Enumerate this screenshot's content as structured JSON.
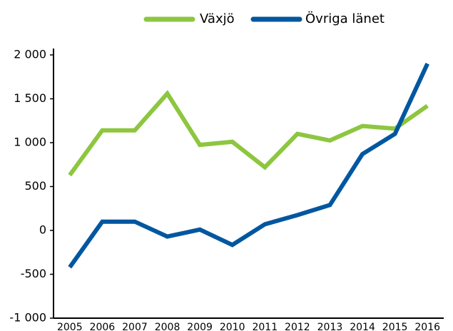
{
  "chart_data": {
    "type": "line",
    "categories": [
      "2005",
      "2006",
      "2007",
      "2008",
      "2009",
      "2010",
      "2011",
      "2012",
      "2013",
      "2014",
      "2015",
      "2016"
    ],
    "series": [
      {
        "name": "Växjö",
        "color": "#8dc63f",
        "values": [
          630,
          1140,
          1140,
          1560,
          975,
          1010,
          720,
          1100,
          1025,
          1190,
          1160,
          1420
        ]
      },
      {
        "name": "Övriga länet",
        "color": "#0057a0",
        "values": [
          -420,
          100,
          100,
          -70,
          10,
          -165,
          70,
          175,
          290,
          870,
          1100,
          1900
        ]
      }
    ],
    "ylim": [
      -1000,
      2000
    ],
    "yticks": [
      {
        "value": -1000,
        "label": "-1 000"
      },
      -500,
      0,
      500,
      {
        "value": 1000,
        "label": "1 000"
      },
      {
        "value": 1500,
        "label": "1 500"
      },
      {
        "value": 2000,
        "label": "2 000"
      }
    ],
    "grid": false,
    "legend": "top"
  }
}
